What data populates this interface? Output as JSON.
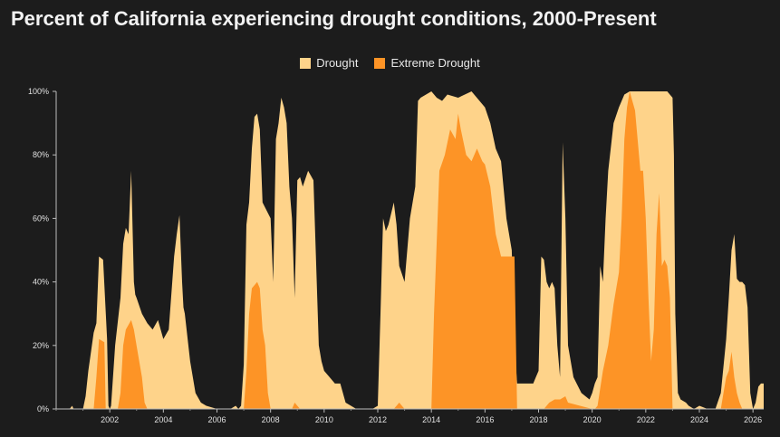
{
  "title": "Percent of California experiencing drought conditions, 2000-Present",
  "chart_data": {
    "type": "area",
    "title": "Percent of California experiencing drought conditions, 2000-Present",
    "xlabel": "",
    "ylabel": "",
    "xlim": [
      2000.0,
      2026.4
    ],
    "ylim": [
      0,
      100
    ],
    "x_ticks": [
      2002,
      2004,
      2006,
      2008,
      2010,
      2012,
      2014,
      2016,
      2018,
      2020,
      2022,
      2024,
      2026
    ],
    "y_ticks": [
      0,
      20,
      40,
      60,
      80,
      100
    ],
    "y_tick_labels": [
      "0%",
      "20%",
      "40%",
      "60%",
      "80%",
      "100%"
    ],
    "legend_position": "top-center",
    "colors": {
      "drought": "#fed38a",
      "extreme": "#fd9426",
      "background": "#1c1c1c"
    },
    "series": [
      {
        "name": "Drought",
        "x": [
          2000.0,
          2000.5,
          2000.6,
          2000.65,
          2001.0,
          2001.1,
          2001.2,
          2001.4,
          2001.5,
          2001.6,
          2001.75,
          2001.9,
          2001.95,
          2002.0,
          2002.05,
          2002.2,
          2002.4,
          2002.5,
          2002.6,
          2002.7,
          2002.8,
          2002.9,
          2002.95,
          2003.0,
          2003.2,
          2003.4,
          2003.6,
          2003.8,
          2004.0,
          2004.2,
          2004.4,
          2004.5,
          2004.6,
          2004.7,
          2004.75,
          2004.8,
          2005.0,
          2005.2,
          2005.4,
          2005.6,
          2006.0,
          2006.5,
          2006.7,
          2006.8,
          2006.9,
          2007.0,
          2007.1,
          2007.2,
          2007.3,
          2007.4,
          2007.5,
          2007.6,
          2007.7,
          2008.0,
          2008.1,
          2008.2,
          2008.3,
          2008.4,
          2008.5,
          2008.6,
          2008.7,
          2008.8,
          2008.9,
          2009.0,
          2009.1,
          2009.2,
          2009.4,
          2009.6,
          2009.8,
          2009.9,
          2010.0,
          2010.2,
          2010.4,
          2010.6,
          2010.8,
          2011.0,
          2011.2,
          2011.5,
          2011.8,
          2012.0,
          2012.1,
          2012.2,
          2012.3,
          2012.4,
          2012.6,
          2012.7,
          2012.8,
          2013.0,
          2013.2,
          2013.4,
          2013.5,
          2013.6,
          2014.0,
          2014.2,
          2014.4,
          2014.6,
          2015.0,
          2015.5,
          2016.0,
          2016.2,
          2016.4,
          2016.6,
          2016.8,
          2017.0,
          2017.1,
          2017.2,
          2017.5,
          2017.8,
          2017.9,
          2018.0,
          2018.1,
          2018.2,
          2018.3,
          2018.4,
          2018.5,
          2018.6,
          2018.7,
          2018.8,
          2018.9,
          2019.0,
          2019.1,
          2019.3,
          2019.6,
          2019.9,
          2020.0,
          2020.1,
          2020.2,
          2020.3,
          2020.4,
          2020.5,
          2020.6,
          2020.8,
          2021.0,
          2021.2,
          2021.4,
          2021.6,
          2021.8,
          2022.0,
          2022.2,
          2022.4,
          2022.6,
          2022.8,
          2023.0,
          2023.05,
          2023.1,
          2023.2,
          2023.3,
          2023.5,
          2023.6,
          2023.8,
          2024.0,
          2024.3,
          2024.5,
          2024.6,
          2024.8,
          2025.0,
          2025.1,
          2025.2,
          2025.3,
          2025.4,
          2025.5,
          2025.6,
          2025.7,
          2025.8,
          2025.9,
          2026.0,
          2026.1,
          2026.2,
          2026.3,
          2026.4
        ],
        "values": [
          0,
          0,
          1,
          0,
          0,
          4,
          12,
          24,
          27,
          48,
          47,
          22,
          1,
          0,
          1,
          20,
          35,
          52,
          57,
          55,
          75,
          40,
          36,
          35,
          30,
          27,
          25,
          28,
          22,
          25,
          48,
          55,
          61,
          40,
          32,
          30,
          15,
          5,
          2,
          1,
          0,
          0,
          1,
          0,
          1,
          14,
          58,
          65,
          82,
          92,
          93,
          88,
          65,
          60,
          40,
          85,
          90,
          98,
          95,
          90,
          70,
          60,
          35,
          72,
          73,
          70,
          75,
          72,
          20,
          15,
          12,
          10,
          8,
          8,
          2,
          1,
          0,
          0,
          0,
          1,
          30,
          60,
          56,
          58,
          65,
          58,
          45,
          40,
          60,
          70,
          97,
          98,
          100,
          98,
          97,
          99,
          98,
          100,
          95,
          90,
          82,
          78,
          60,
          50,
          20,
          8,
          8,
          8,
          10,
          12,
          48,
          47,
          40,
          38,
          40,
          38,
          20,
          10,
          84,
          60,
          20,
          10,
          5,
          3,
          5,
          8,
          10,
          45,
          40,
          60,
          75,
          90,
          95,
          99,
          100,
          100,
          100,
          100,
          100,
          100,
          100,
          100,
          98,
          80,
          30,
          5,
          3,
          2,
          1,
          0,
          1,
          0,
          0,
          0,
          5,
          22,
          35,
          50,
          55,
          41,
          40,
          40,
          39,
          32,
          5,
          0,
          2,
          7,
          8,
          8
        ],
        "color": "#fed38a"
      },
      {
        "name": "Extreme Drought",
        "x": [
          2000.0,
          2001.4,
          2001.5,
          2001.6,
          2001.8,
          2001.85,
          2002.0,
          2002.3,
          2002.4,
          2002.5,
          2002.6,
          2002.8,
          2002.9,
          2003.0,
          2003.1,
          2003.2,
          2003.3,
          2003.4,
          2007.0,
          2007.1,
          2007.2,
          2007.3,
          2007.5,
          2007.6,
          2007.7,
          2007.8,
          2007.9,
          2008.0,
          2008.1,
          2008.2,
          2008.5,
          2008.8,
          2008.9,
          2009.0,
          2009.1,
          2009.2,
          2012.6,
          2012.7,
          2012.8,
          2012.9,
          2013.0,
          2013.5,
          2013.6,
          2013.7,
          2013.9,
          2014.0,
          2014.1,
          2014.3,
          2014.5,
          2014.7,
          2014.9,
          2015.0,
          2015.1,
          2015.3,
          2015.5,
          2015.7,
          2015.9,
          2016.0,
          2016.2,
          2016.4,
          2016.6,
          2016.8,
          2017.0,
          2017.1,
          2017.2,
          2018.1,
          2018.2,
          2018.4,
          2018.6,
          2018.8,
          2019.0,
          2019.1,
          2020.0,
          2020.1,
          2020.2,
          2020.4,
          2020.6,
          2020.8,
          2021.0,
          2021.1,
          2021.2,
          2021.3,
          2021.4,
          2021.5,
          2021.6,
          2021.8,
          2021.9,
          2022.0,
          2022.1,
          2022.2,
          2022.3,
          2022.4,
          2022.5,
          2022.6,
          2022.7,
          2022.8,
          2022.9,
          2023.0,
          2023.1,
          2024.8,
          2024.9,
          2025.0,
          2025.1,
          2025.2,
          2025.3,
          2025.4,
          2025.5,
          2025.6
        ],
        "values": [
          0,
          0,
          10,
          22,
          21,
          0,
          0,
          0,
          5,
          20,
          25,
          28,
          25,
          20,
          15,
          10,
          2,
          0,
          0,
          12,
          30,
          38,
          40,
          38,
          25,
          20,
          5,
          0,
          0,
          0,
          0,
          0,
          2,
          1,
          0,
          0,
          0,
          1,
          2,
          1,
          0,
          0,
          0,
          0,
          0,
          0,
          30,
          75,
          80,
          88,
          85,
          93,
          88,
          80,
          78,
          82,
          78,
          77,
          70,
          55,
          48,
          48,
          48,
          48,
          0,
          0,
          0,
          2,
          3,
          3,
          4,
          2,
          0,
          0,
          1,
          12,
          20,
          33,
          43,
          60,
          85,
          95,
          100,
          97,
          94,
          75,
          75,
          60,
          35,
          15,
          25,
          55,
          68,
          45,
          47,
          45,
          35,
          0,
          0,
          0,
          5,
          10,
          12,
          18,
          10,
          5,
          2,
          0
        ],
        "color": "#fd9426"
      }
    ]
  }
}
